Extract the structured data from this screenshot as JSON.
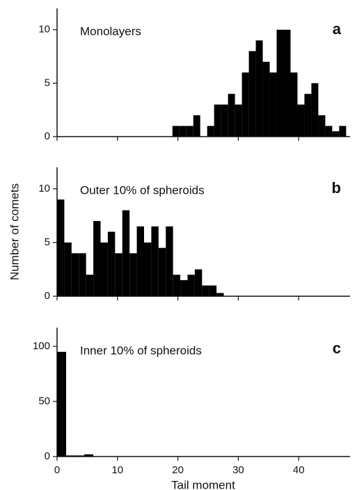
{
  "chart_data": [
    {
      "type": "histogram",
      "annotation": "Monolayers",
      "panel": "a",
      "color": "#000000",
      "bins": [
        19.1,
        20.25,
        21.4,
        22.55,
        23.7,
        24.85,
        26.0,
        27.15,
        28.3,
        29.45,
        30.6,
        31.75,
        32.9,
        34.05,
        35.2,
        36.35,
        37.5,
        38.65,
        39.8,
        40.95,
        42.1,
        43.25,
        44.4,
        45.55,
        46.7,
        47.85
      ],
      "values": [
        1,
        1,
        1,
        2,
        0,
        1,
        3,
        3,
        4,
        3,
        6,
        8,
        9,
        7,
        6,
        10,
        10,
        6,
        3,
        4,
        5,
        2,
        1,
        0.5,
        1
      ],
      "xlim": [
        0,
        48.5
      ],
      "xticks": [
        0,
        10,
        20,
        30,
        40
      ],
      "ylim": [
        0,
        12
      ],
      "yticks": [
        0,
        5,
        10
      ]
    },
    {
      "type": "histogram",
      "annotation": "Outer 10% of spheroids",
      "panel": "b",
      "color": "#000000",
      "ylabel": "Number of comets",
      "bins": [
        0,
        1.2,
        2.4,
        3.6,
        4.8,
        6.0,
        7.2,
        8.4,
        9.6,
        10.8,
        12.0,
        13.2,
        14.4,
        15.6,
        16.8,
        18.0,
        19.2,
        20.4,
        21.6,
        22.8,
        24.0,
        25.2,
        26.4,
        27.6
      ],
      "values": [
        9,
        5,
        4,
        4,
        2,
        7,
        5,
        6,
        4,
        8,
        4,
        6.5,
        5,
        6.5,
        4.5,
        6.5,
        2,
        1.5,
        2,
        2.5,
        1,
        1,
        0.3
      ],
      "xlim": [
        0,
        48.5
      ],
      "xticks": [
        0,
        10,
        20,
        30,
        40
      ],
      "ylim": [
        0,
        12
      ],
      "yticks": [
        0,
        5,
        10
      ]
    },
    {
      "type": "histogram",
      "annotation": "Inner 10% of spheroids",
      "panel": "c",
      "color": "#000000",
      "xlabel": "Tail moment",
      "bins": [
        0,
        1.5,
        3.0,
        4.5,
        6.0
      ],
      "values": [
        95,
        1,
        1,
        2
      ],
      "xlim": [
        0,
        48.5
      ],
      "xticks": [
        0,
        10,
        20,
        30,
        40
      ],
      "ylim": [
        0,
        117
      ],
      "yticks": [
        0,
        50,
        100
      ]
    }
  ]
}
